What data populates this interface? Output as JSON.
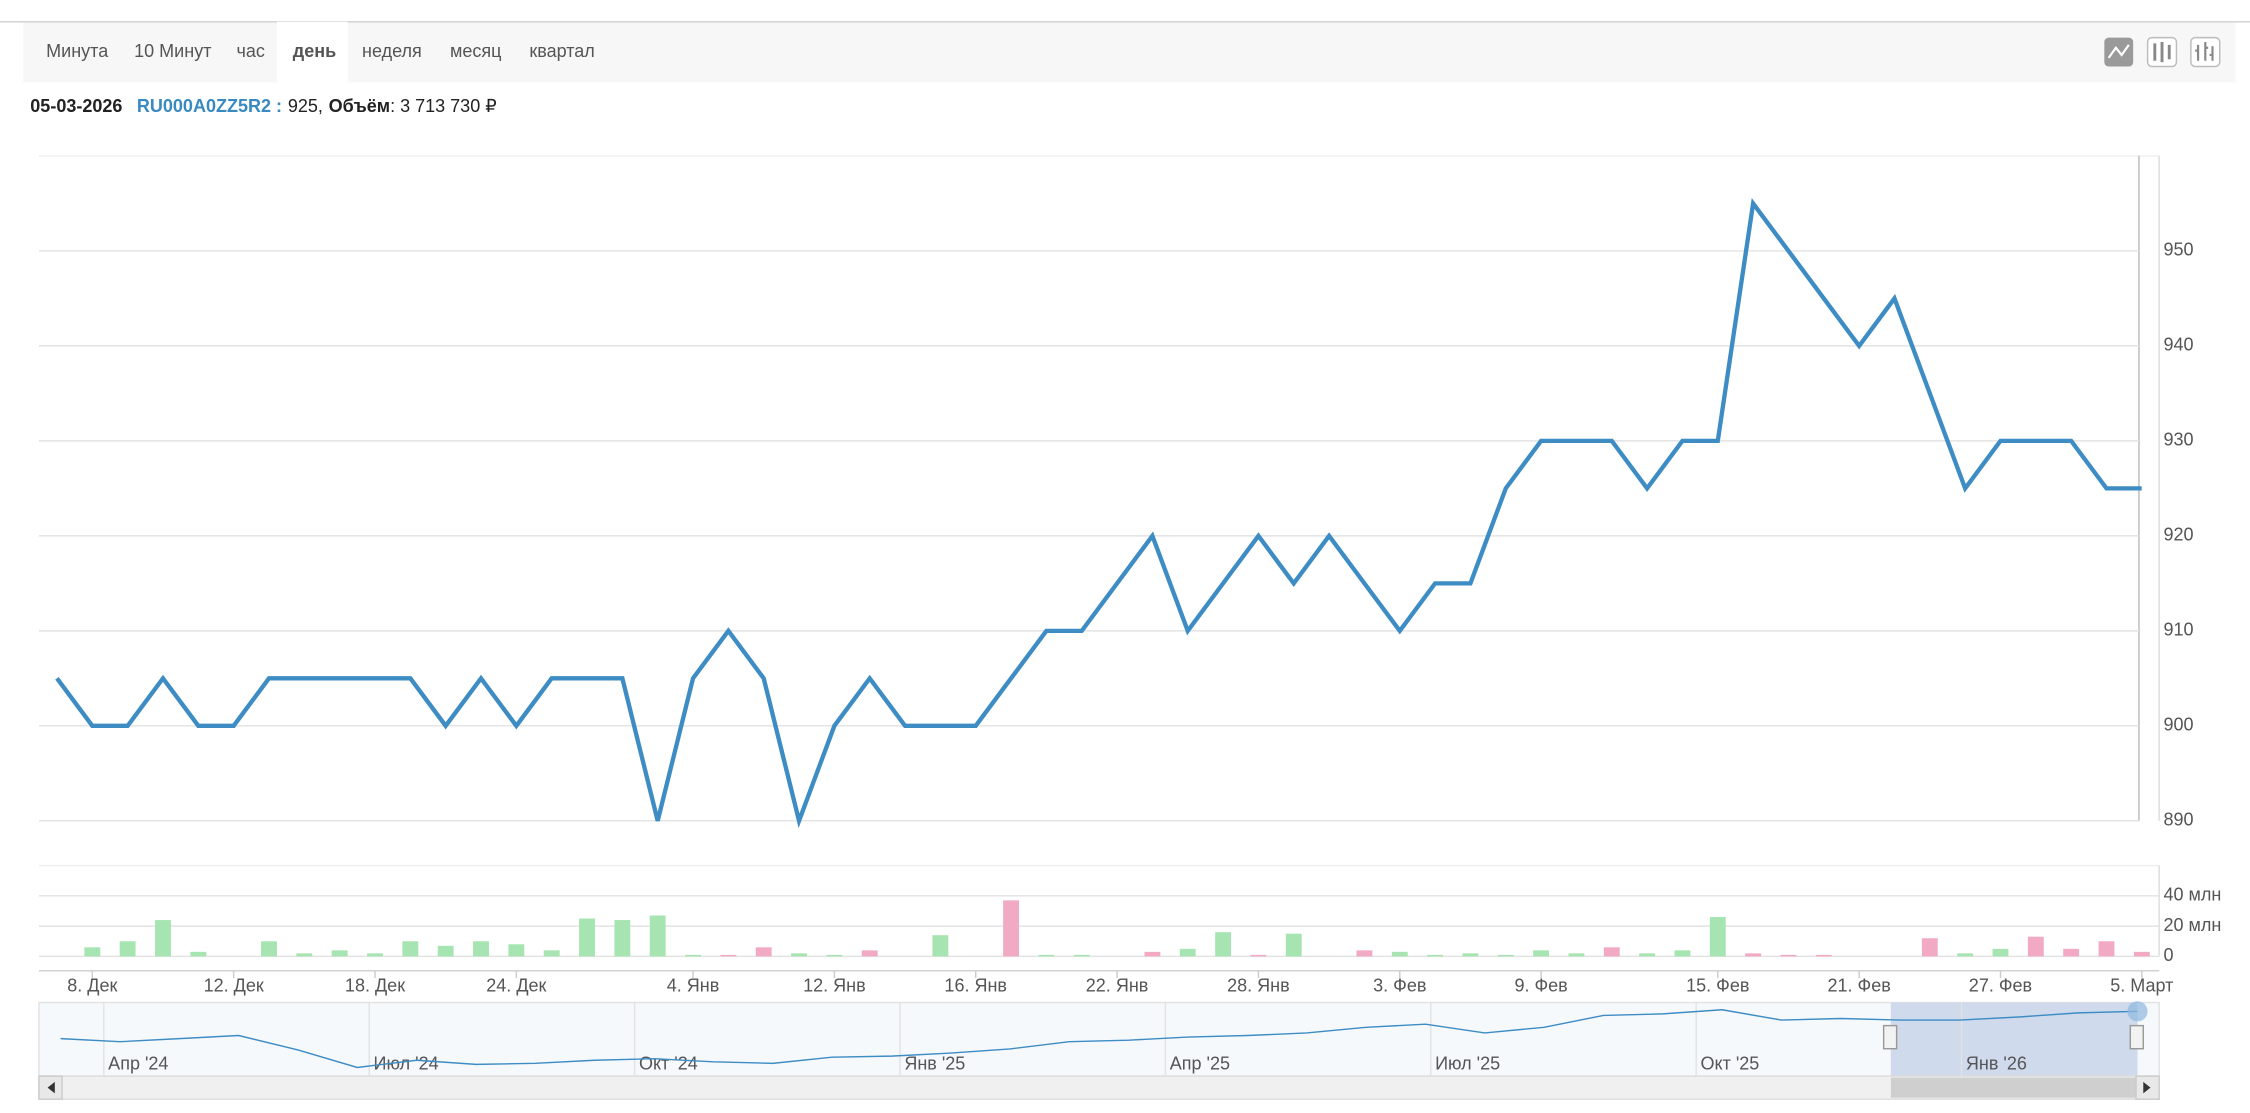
{
  "tabs": [
    "Минута",
    "10 Минут",
    "час",
    "день",
    "неделя",
    "месяц",
    "квартал"
  ],
  "active_tab": 3,
  "info": {
    "date": "05-03-2026",
    "ticker": "RU000A0ZZ5R2 :",
    "price": "925,",
    "volume_label": "Объём",
    "volume": ": 3 713 730 ₽"
  },
  "chart_data": {
    "type": "line",
    "color": "#3d8cc4",
    "categories": [
      null,
      "8. Дек",
      null,
      null,
      null,
      "12. Дек",
      null,
      null,
      null,
      "18. Дек",
      null,
      null,
      null,
      "24. Дек",
      null,
      null,
      null,
      null,
      "4. Янв",
      null,
      null,
      null,
      "12. Янв",
      null,
      null,
      null,
      "16. Янв",
      null,
      null,
      null,
      "22. Янв",
      null,
      null,
      null,
      "28. Янв",
      null,
      null,
      null,
      "3. Фев",
      null,
      null,
      null,
      "9. Фев",
      null,
      null,
      null,
      null,
      "15. Фев",
      null,
      null,
      null,
      "21. Фев",
      null,
      null,
      null,
      "27. Фев",
      null,
      null,
      null,
      "5. Март"
    ],
    "values": [
      905,
      900,
      900,
      905,
      900,
      900,
      905,
      905,
      905,
      905,
      905,
      900,
      905,
      900,
      905,
      905,
      905,
      890,
      905,
      910,
      905,
      890,
      900,
      905,
      900,
      900,
      900,
      905,
      910,
      910,
      915,
      920,
      910,
      915,
      920,
      915,
      920,
      915,
      910,
      915,
      915,
      925,
      930,
      930,
      930,
      925,
      930,
      930,
      955,
      950,
      945,
      940,
      945,
      935,
      925,
      930,
      930,
      930,
      925,
      925
    ],
    "ylim": [
      890,
      960
    ],
    "yticks": [
      890,
      900,
      910,
      920,
      930,
      940,
      950
    ],
    "grid": true,
    "volume": {
      "type": "bar",
      "values": [
        0,
        6,
        10,
        24,
        3,
        0,
        10,
        2,
        4,
        2,
        10,
        7,
        10,
        8,
        4,
        25,
        24,
        27,
        1,
        1,
        6,
        2,
        1,
        4,
        0,
        14,
        0,
        37,
        1,
        1,
        0,
        3,
        5,
        16,
        1,
        15,
        0,
        4,
        3,
        1,
        2,
        1,
        4,
        2,
        6,
        2,
        4,
        26,
        2,
        1,
        1,
        0,
        0,
        12,
        2,
        5,
        13,
        5,
        10,
        3
      ],
      "colors": [
        "#a6e4b1",
        "#a6e4b1",
        "#a6e4b1",
        "#a6e4b1",
        "#a6e4b1",
        "#a6e4b1",
        "#a6e4b1",
        "#a6e4b1",
        "#a6e4b1",
        "#a6e4b1",
        "#a6e4b1",
        "#a6e4b1",
        "#a6e4b1",
        "#a6e4b1",
        "#a6e4b1",
        "#a6e4b1",
        "#a6e4b1",
        "#a6e4b1",
        "#a6e4b1",
        "#f2aac4",
        "#f2aac4",
        "#a6e4b1",
        "#a6e4b1",
        "#f2aac4",
        "#a6e4b1",
        "#a6e4b1",
        "#a6e4b1",
        "#f2aac4",
        "#a6e4b1",
        "#a6e4b1",
        "#a6e4b1",
        "#f2aac4",
        "#a6e4b1",
        "#a6e4b1",
        "#f2aac4",
        "#a6e4b1",
        "#a6e4b1",
        "#f2aac4",
        "#a6e4b1",
        "#a6e4b1",
        "#a6e4b1",
        "#a6e4b1",
        "#a6e4b1",
        "#a6e4b1",
        "#f2aac4",
        "#a6e4b1",
        "#a6e4b1",
        "#a6e4b1",
        "#f2aac4",
        "#f2aac4",
        "#f2aac4",
        "#a6e4b1",
        "#a6e4b1",
        "#f2aac4",
        "#a6e4b1",
        "#a6e4b1",
        "#f2aac4",
        "#f2aac4",
        "#f2aac4",
        "#f2aac4"
      ],
      "ylim": [
        0,
        60
      ],
      "yticks": [
        0,
        {
          "value": 20,
          "label": "20 млн"
        },
        {
          "value": 40,
          "label": "40 млн"
        }
      ]
    },
    "navigator": {
      "labels": [
        "Апр '24",
        "Июл '24",
        "Окт '24",
        "Янв '25",
        "Апр '25",
        "Июл '25",
        "Окт '25",
        "Янв '26"
      ],
      "values": [
        890,
        884,
        890,
        896,
        868,
        834,
        848,
        840,
        842,
        848,
        851,
        845,
        842,
        854,
        856,
        862,
        870,
        884,
        887,
        893,
        896,
        901,
        912,
        918,
        901,
        912,
        935,
        938,
        946,
        926,
        929,
        926,
        926,
        932,
        940,
        943
      ],
      "ylim": [
        820,
        960
      ]
    }
  }
}
